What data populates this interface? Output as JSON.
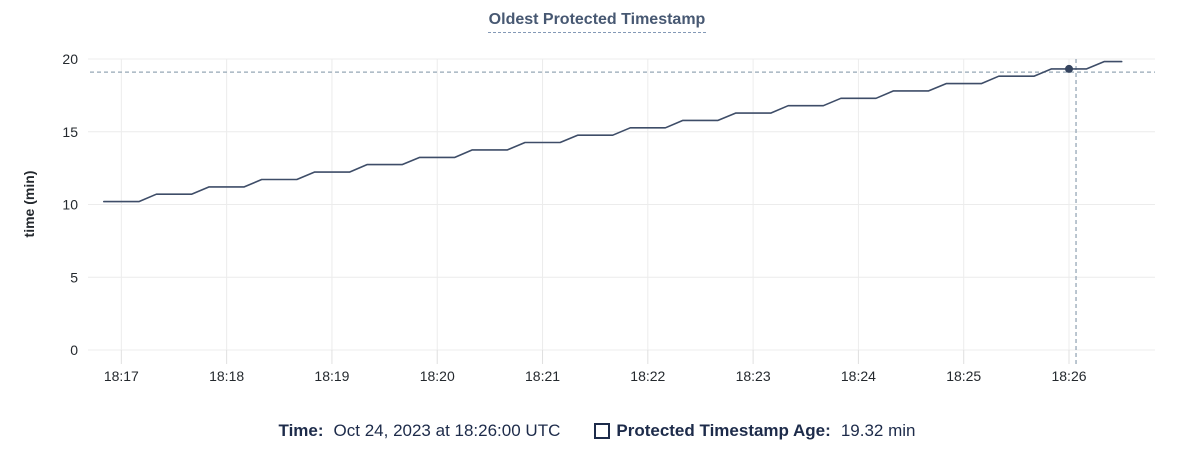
{
  "chart_data": {
    "type": "line",
    "title": "Oldest Protected Timestamp",
    "xlabel": "",
    "ylabel": "time (min)",
    "ylim": [
      0,
      20
    ],
    "yticks": [
      0,
      5,
      10,
      15,
      20
    ],
    "xticks": [
      "18:17",
      "18:18",
      "18:19",
      "18:20",
      "18:21",
      "18:22",
      "18:23",
      "18:24",
      "18:25",
      "18:26"
    ],
    "x_domain": [
      "18:16:41",
      "18:26:49"
    ],
    "grid": true,
    "legend_position": "bottom-center",
    "colors": {
      "line": "#3e4d68",
      "dot": "#35445f",
      "grid": "#ececec",
      "axis_tick": "#e0e0e0",
      "axis_text": "#24292e",
      "crosshair": "#96a7b6",
      "title": "#475872",
      "legend_text": "#1d2b4a"
    },
    "series": [
      {
        "name": "Protected Timestamp Age",
        "color": "#3e4d68",
        "points": [
          [
            "18:16:50",
            10.2
          ],
          [
            "18:17:00",
            10.2
          ],
          [
            "18:17:10",
            10.2
          ],
          [
            "18:17:20",
            10.71
          ],
          [
            "18:17:30",
            10.71
          ],
          [
            "18:17:40",
            10.71
          ],
          [
            "18:17:50",
            11.21
          ],
          [
            "18:18:00",
            11.21
          ],
          [
            "18:18:10",
            11.21
          ],
          [
            "18:18:20",
            11.72
          ],
          [
            "18:18:30",
            11.72
          ],
          [
            "18:18:40",
            11.72
          ],
          [
            "18:18:50",
            12.23
          ],
          [
            "18:19:00",
            12.23
          ],
          [
            "18:19:10",
            12.23
          ],
          [
            "18:19:20",
            12.74
          ],
          [
            "18:19:30",
            12.74
          ],
          [
            "18:19:40",
            12.74
          ],
          [
            "18:19:50",
            13.24
          ],
          [
            "18:20:00",
            13.24
          ],
          [
            "18:20:10",
            13.24
          ],
          [
            "18:20:20",
            13.75
          ],
          [
            "18:20:30",
            13.75
          ],
          [
            "18:20:40",
            13.75
          ],
          [
            "18:20:50",
            14.26
          ],
          [
            "18:21:00",
            14.26
          ],
          [
            "18:21:10",
            14.26
          ],
          [
            "18:21:20",
            14.76
          ],
          [
            "18:21:30",
            14.76
          ],
          [
            "18:21:40",
            14.76
          ],
          [
            "18:21:50",
            15.27
          ],
          [
            "18:22:00",
            15.27
          ],
          [
            "18:22:10",
            15.27
          ],
          [
            "18:22:20",
            15.78
          ],
          [
            "18:22:30",
            15.78
          ],
          [
            "18:22:40",
            15.78
          ],
          [
            "18:22:50",
            16.28
          ],
          [
            "18:23:00",
            16.28
          ],
          [
            "18:23:10",
            16.28
          ],
          [
            "18:23:20",
            16.79
          ],
          [
            "18:23:30",
            16.79
          ],
          [
            "18:23:40",
            16.79
          ],
          [
            "18:23:50",
            17.3
          ],
          [
            "18:24:00",
            17.3
          ],
          [
            "18:24:10",
            17.3
          ],
          [
            "18:24:20",
            17.81
          ],
          [
            "18:24:30",
            17.81
          ],
          [
            "18:24:40",
            17.81
          ],
          [
            "18:24:50",
            18.31
          ],
          [
            "18:25:00",
            18.31
          ],
          [
            "18:25:10",
            18.31
          ],
          [
            "18:25:20",
            18.82
          ],
          [
            "18:25:30",
            18.82
          ],
          [
            "18:25:40",
            18.82
          ],
          [
            "18:25:50",
            19.32
          ],
          [
            "18:26:00",
            19.32
          ],
          [
            "18:26:10",
            19.32
          ],
          [
            "18:26:20",
            19.82
          ],
          [
            "18:26:30",
            19.82
          ]
        ]
      }
    ],
    "hover": {
      "time_key": "Time:",
      "time_value": "Oct 24, 2023 at 18:26:00 UTC",
      "series_key": "Protected Timestamp Age:",
      "series_value": "19.32 min",
      "point_time": "18:26:00",
      "point_value": 19.32,
      "cursor_time": "18:26:04",
      "cursor_value": 19.1
    }
  }
}
